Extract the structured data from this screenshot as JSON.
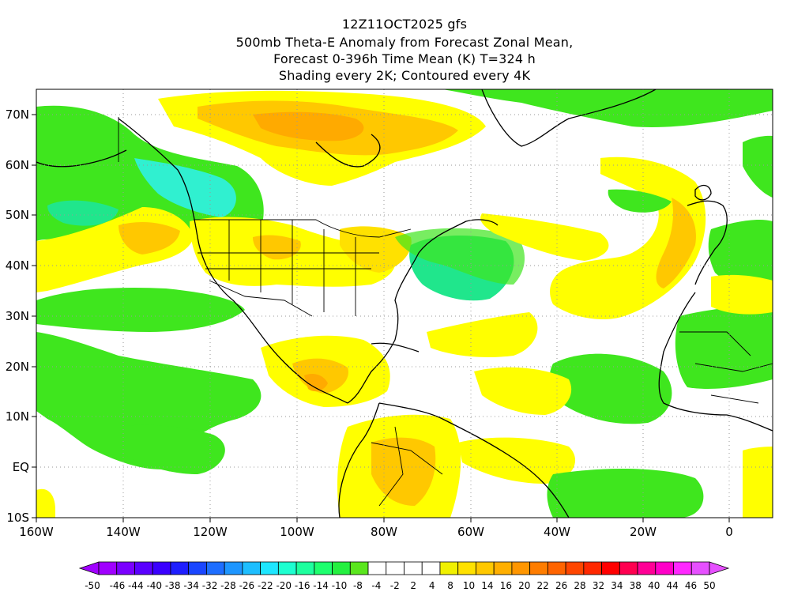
{
  "titles": {
    "line1": "12Z11OCT2025 gfs",
    "line2": "500mb Theta-E Anomaly from Forecast Zonal Mean,",
    "line3": "Forecast 0-396h Time Mean (K) T=324 h",
    "line4": "Shading every 2K; Contoured every 4K"
  },
  "map": {
    "lon_range": [
      -160,
      10
    ],
    "lat_range": [
      -10,
      75
    ],
    "lon_ticks": [
      {
        "value": -160,
        "label": "160W"
      },
      {
        "value": -140,
        "label": "140W"
      },
      {
        "value": -120,
        "label": "120W"
      },
      {
        "value": -100,
        "label": "100W"
      },
      {
        "value": -80,
        "label": "80W"
      },
      {
        "value": -60,
        "label": "60W"
      },
      {
        "value": -40,
        "label": "40W"
      },
      {
        "value": -20,
        "label": "20W"
      },
      {
        "value": 0,
        "label": "0"
      }
    ],
    "lat_ticks": [
      {
        "value": 70,
        "label": "70N"
      },
      {
        "value": 60,
        "label": "60N"
      },
      {
        "value": 50,
        "label": "50N"
      },
      {
        "value": 40,
        "label": "40N"
      },
      {
        "value": 30,
        "label": "30N"
      },
      {
        "value": 20,
        "label": "20N"
      },
      {
        "value": 10,
        "label": "10N"
      },
      {
        "value": 0,
        "label": "EQ"
      },
      {
        "value": -10,
        "label": "10S"
      }
    ],
    "grid": "dotted"
  },
  "colorbar": {
    "labels": [
      "-50",
      "-46",
      "-44",
      "-40",
      "-38",
      "-34",
      "-32",
      "-28",
      "-26",
      "-22",
      "-20",
      "-16",
      "-14",
      "-10",
      "-8",
      "-4",
      "-2",
      "2",
      "4",
      "8",
      "10",
      "14",
      "16",
      "20",
      "22",
      "26",
      "28",
      "32",
      "34",
      "38",
      "40",
      "44",
      "46",
      "50"
    ],
    "colors": [
      "#a000ff",
      "#7a00ff",
      "#5a00ff",
      "#3a00ff",
      "#1e1eff",
      "#1a46ff",
      "#1e6eff",
      "#1e96ff",
      "#1ebeff",
      "#1ee6ff",
      "#1effd0",
      "#1eff9e",
      "#1eff6e",
      "#24f040",
      "#5ae61e",
      "#ffffff",
      "#ffffff",
      "#ffffff",
      "#ffffff",
      "#f0f000",
      "#ffe100",
      "#ffc800",
      "#ffaf00",
      "#ff9600",
      "#ff7d00",
      "#ff6400",
      "#ff4600",
      "#ff2800",
      "#ff0000",
      "#ff0050",
      "#ff0096",
      "#ff00c8",
      "#ff28ff",
      "#e650ff"
    ]
  },
  "shading_colors": {
    "green_light": "#7ee600",
    "green": "#3fe61e",
    "green_teal": "#20e68c",
    "cyan": "#30f0d0",
    "yellow": "#ffff00",
    "yellow_orange": "#ffe100",
    "orange": "#ffc800",
    "dark_orange": "#ffaa00"
  }
}
